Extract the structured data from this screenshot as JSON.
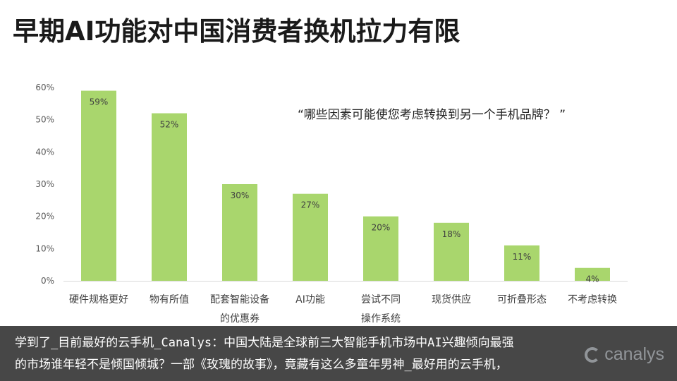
{
  "slide": {
    "title": "早期AI功能对中国消费者换机拉力有限",
    "question": "“哪些因素可能使您考虑转换到另一个手机品牌？ ”"
  },
  "chart_data": {
    "type": "bar",
    "categories": [
      "硬件规格更好",
      "物有所值",
      "配套智能设备的优惠券",
      "AI功能",
      "尝试不同操作系统",
      "现货供应",
      "可折叠形态",
      "不考虑转换"
    ],
    "category_lines": [
      [
        "硬件规格更好"
      ],
      [
        "物有所值"
      ],
      [
        "配套智能设备",
        "的优惠券"
      ],
      [
        "AI功能"
      ],
      [
        "尝试不同",
        "操作系统"
      ],
      [
        "现货供应"
      ],
      [
        "可折叠形态"
      ],
      [
        "不考虑转换"
      ]
    ],
    "values": [
      59,
      52,
      30,
      27,
      20,
      18,
      11,
      4
    ],
    "data_labels": [
      "59%",
      "52%",
      "30%",
      "27%",
      "20%",
      "18%",
      "11%",
      "4%"
    ],
    "yticks": [
      "0%",
      "10%",
      "20%",
      "30%",
      "40%",
      "50%",
      "60%"
    ],
    "ylim": [
      0,
      60
    ],
    "grid": false,
    "bar_color": "#a9d66d",
    "label_color": "#404040"
  },
  "overlay": {
    "line1": "学到了_目前最好的云手机_Canalys：中国大陆是全球前三大智能手机市场中AI兴趣倾向最强",
    "line2": "的市场谁年轻不是倾国倾城？一部《玫瑰的故事》，竟藏有这么多童年男神_最好用的云手机，"
  },
  "brand": {
    "name": "canalys",
    "icon": "canalys-logo-icon"
  }
}
